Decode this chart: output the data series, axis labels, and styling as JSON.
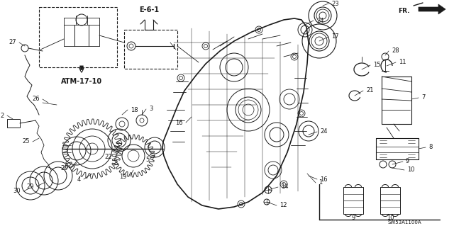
{
  "bg_color": "#ffffff",
  "fig_width": 6.4,
  "fig_height": 3.19,
  "dpi": 100,
  "diagram_code": "SW53A1100A",
  "fr_label": "FR.",
  "ref_label": "E-6-1",
  "atm_label": "ATM-17-10",
  "gray": "#1a1a1a"
}
